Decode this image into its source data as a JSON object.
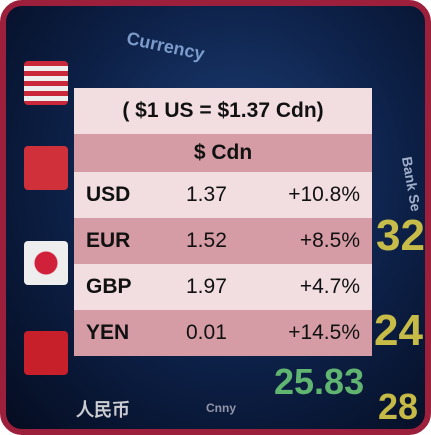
{
  "background": {
    "labels": [
      "Currency",
      "Bank Se",
      "32",
      "24.",
      "28",
      "25.83",
      "人民币",
      "Cnny"
    ]
  },
  "table": {
    "title": "( $1 US = $1.37 Cdn)",
    "header": "$ Cdn",
    "rows": [
      [
        "USD",
        "1.37",
        "+10.8%"
      ],
      [
        "EUR",
        "1.52",
        "+8.5%"
      ],
      [
        "GBP",
        "1.97",
        "+4.7%"
      ],
      [
        "YEN",
        "0.01",
        "+14.5%"
      ]
    ]
  }
}
